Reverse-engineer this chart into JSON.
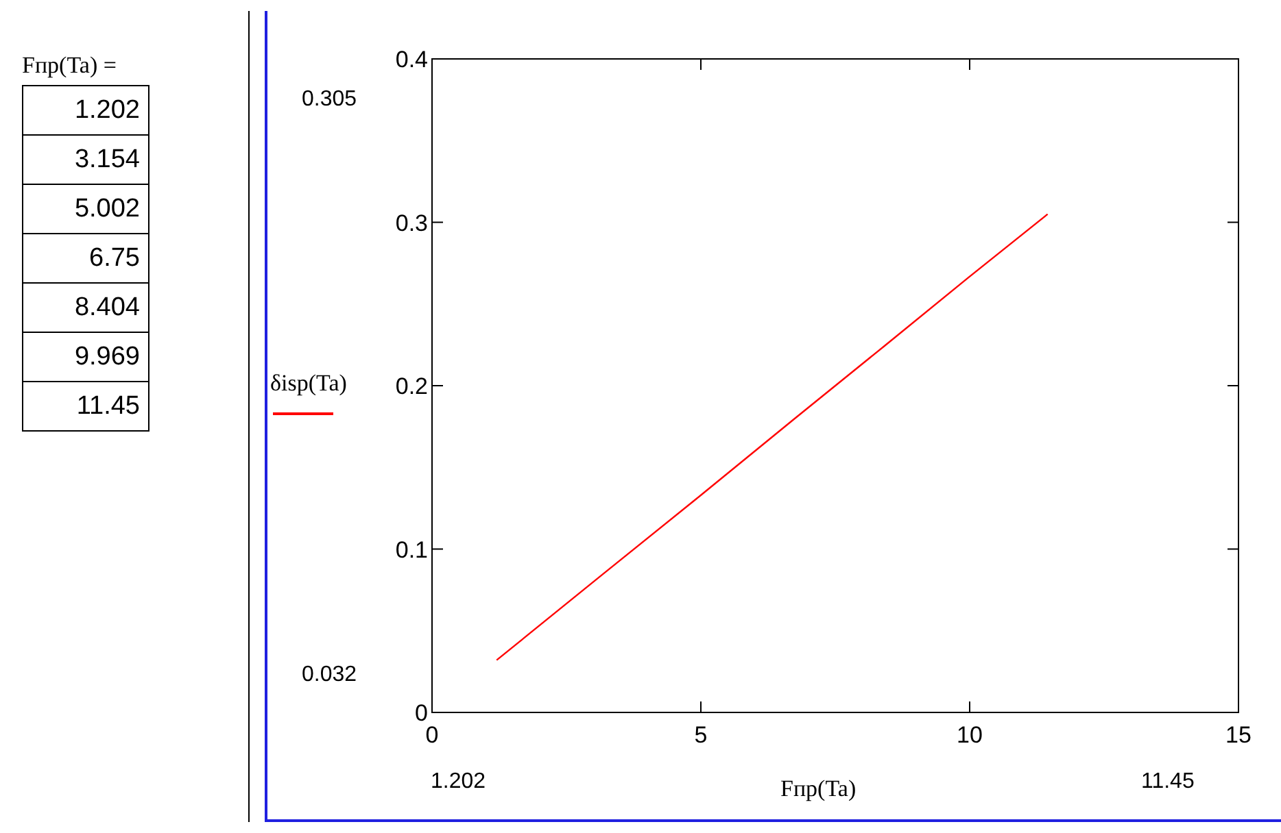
{
  "chart_data": {
    "type": "line",
    "xlabel": "Fпр(Ta)",
    "x": [
      1.202,
      3.154,
      5.002,
      6.75,
      8.404,
      9.969,
      11.45
    ],
    "series": [
      {
        "name": "δisp(Ta)",
        "color": "#ff0000",
        "values": [
          0.032,
          0.084,
          0.133,
          0.18,
          0.224,
          0.266,
          0.305
        ]
      }
    ],
    "xlim": [
      0,
      15
    ],
    "xticks": [
      0,
      5,
      10,
      15
    ],
    "ylim": [
      0,
      0.4
    ],
    "yticks": [
      0,
      0.1,
      0.2,
      0.3,
      0.4
    ],
    "grid": false,
    "legend": "left",
    "marker": "none",
    "line_style": "solid",
    "annotations": [
      "Fпр(Ta) =",
      "1.202",
      "3.154",
      "5.002",
      "6.75",
      "8.404",
      "9.969",
      "11.45",
      "0.305",
      "0.032",
      "1.202",
      "11.45"
    ]
  }
}
